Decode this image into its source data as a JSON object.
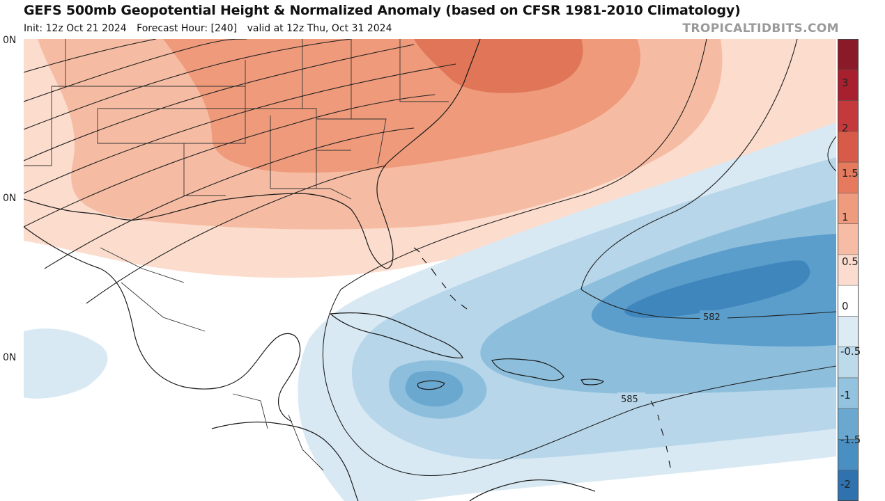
{
  "header": {
    "title": "GEFS 500mb Geopotential Height & Normalized Anomaly (based on CFSR 1981-2010 Climatology)",
    "init": "Init: 12z Oct 21 2024",
    "forecast_hour": "Forecast Hour: [240]",
    "valid": "valid at 12z Thu, Oct 31 2024",
    "credit": "TROPICALTIDBITS.COM"
  },
  "latitude_labels": [
    "0N",
    "0N",
    "0N"
  ],
  "contours": {
    "labels": [
      "582",
      "585"
    ]
  },
  "colorbar": {
    "labels": [
      "3",
      "2",
      "1.5",
      "1",
      "0.5",
      "0",
      "-0.5",
      "-1",
      "-1.5",
      "-2"
    ],
    "colors": [
      "#8b1a28",
      "#a8202e",
      "#c43a3c",
      "#d85a48",
      "#e57a5e",
      "#ef9b7e",
      "#f6bca6",
      "#fbdccf",
      "#ffffff",
      "#dcebf4",
      "#bcdaea",
      "#93c3de",
      "#6aa8d0",
      "#4a8fc2",
      "#2f72ad"
    ]
  },
  "anomaly_colors": {
    "pos_strong": "#e07558",
    "pos_mid": "#ee9a7b",
    "pos_light": "#f6bca3",
    "pos_faint": "#fbdccd",
    "neg_faint": "#d9e9f3",
    "neg_light": "#b7d6ea",
    "neg_mid": "#8dbfdd",
    "neg_strong": "#5b9ecc",
    "neg_deep": "#3f86bd"
  }
}
